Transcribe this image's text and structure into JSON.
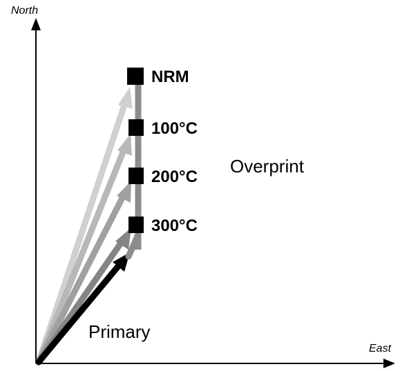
{
  "axes": {
    "north_label": "North",
    "east_label": "East"
  },
  "labels": {
    "overprint": "Overprint",
    "primary": "Primary"
  },
  "steps": [
    {
      "label": "NRM",
      "color": "#cccccc"
    },
    {
      "label": "100°C",
      "color": "#b3b3b3"
    },
    {
      "label": "200°C",
      "color": "#999999"
    },
    {
      "label": "300°C",
      "color": "#808080"
    }
  ],
  "colors": {
    "axis": "#000000",
    "primary_vector": "#000000",
    "overprint_segment": "#8c8c8c",
    "marker": "#000000"
  }
}
